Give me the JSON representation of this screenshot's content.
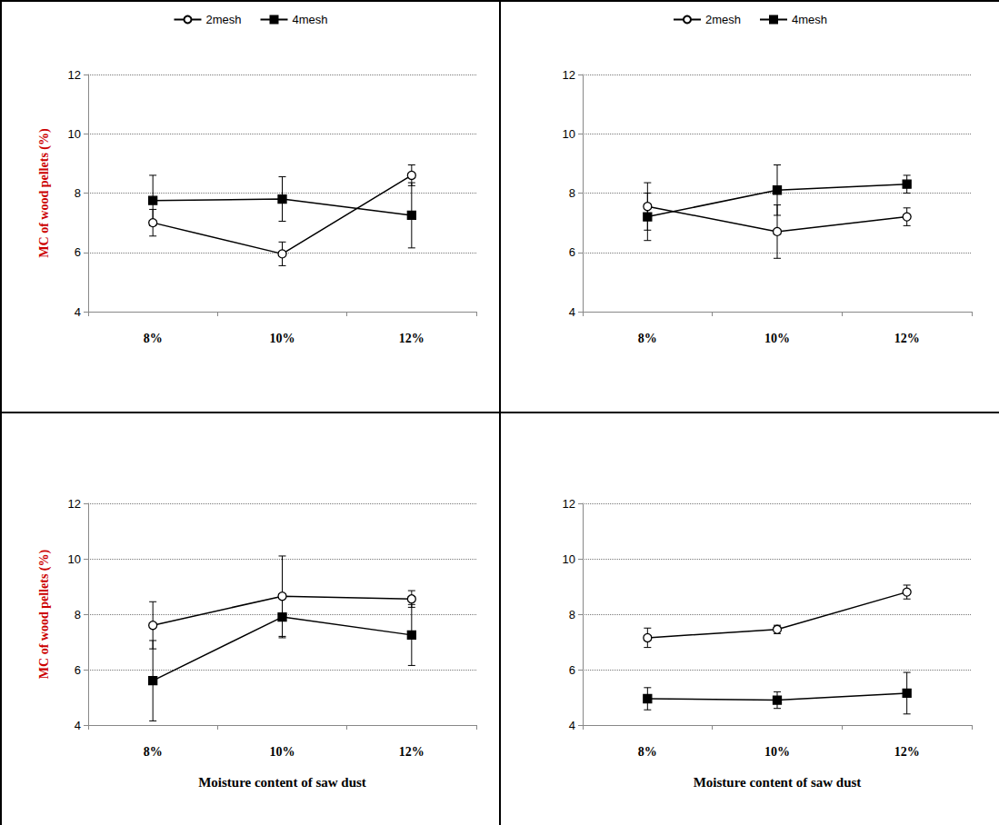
{
  "chart_data": [
    {
      "type": "line",
      "ylabel": "MC of wood pellets (%)",
      "categories": [
        "8%",
        "10%",
        "12%"
      ],
      "ylim": [
        4,
        12
      ],
      "yticks": [
        4,
        6,
        8,
        10,
        12
      ],
      "grid": true,
      "legend": "top",
      "series": [
        {
          "name": "2mesh",
          "color": "#000000",
          "marker": "circle_open",
          "values": [
            7.0,
            5.95,
            8.6
          ],
          "errors": [
            0.45,
            0.4,
            0.35
          ]
        },
        {
          "name": "4mesh",
          "color": "#000000",
          "marker": "square",
          "values": [
            7.75,
            7.8,
            7.25
          ],
          "errors": [
            0.85,
            0.75,
            1.1
          ]
        }
      ]
    },
    {
      "type": "line",
      "categories": [
        "8%",
        "10%",
        "12%"
      ],
      "ylim": [
        4,
        12
      ],
      "yticks": [
        4,
        6,
        8,
        10,
        12
      ],
      "grid": true,
      "legend": "top",
      "series": [
        {
          "name": "2mesh",
          "color": "#000000",
          "marker": "circle_open",
          "values": [
            7.55,
            6.7,
            7.2
          ],
          "errors": [
            0.8,
            0.9,
            0.3
          ]
        },
        {
          "name": "4mesh",
          "color": "#000000",
          "marker": "square",
          "values": [
            7.2,
            8.1,
            8.3
          ],
          "errors": [
            0.8,
            0.85,
            0.3
          ]
        }
      ]
    },
    {
      "type": "line",
      "ylabel": "MC of wood pellets (%)",
      "xlabel": "Moisture content of saw dust",
      "categories": [
        "8%",
        "10%",
        "12%"
      ],
      "ylim": [
        4,
        12
      ],
      "yticks": [
        4,
        6,
        8,
        10,
        12
      ],
      "grid": true,
      "series": [
        {
          "name": "2mesh",
          "color": "#000000",
          "marker": "circle_open",
          "values": [
            7.6,
            8.65,
            8.55
          ],
          "errors": [
            0.85,
            1.45,
            0.3
          ]
        },
        {
          "name": "4mesh",
          "color": "#000000",
          "marker": "square",
          "values": [
            5.6,
            7.9,
            7.25
          ],
          "errors": [
            1.45,
            0.75,
            1.1
          ]
        }
      ]
    },
    {
      "type": "line",
      "xlabel": "Moisture content of saw dust",
      "categories": [
        "8%",
        "10%",
        "12%"
      ],
      "ylim": [
        4,
        12
      ],
      "yticks": [
        4,
        6,
        8,
        10,
        12
      ],
      "grid": true,
      "series": [
        {
          "name": "2mesh",
          "color": "#000000",
          "marker": "circle_open",
          "values": [
            7.15,
            7.45,
            8.8
          ],
          "errors": [
            0.35,
            0.15,
            0.25
          ]
        },
        {
          "name": "4mesh",
          "color": "#000000",
          "marker": "square",
          "values": [
            4.95,
            4.9,
            5.15
          ],
          "errors": [
            0.4,
            0.3,
            0.75
          ]
        }
      ]
    }
  ]
}
